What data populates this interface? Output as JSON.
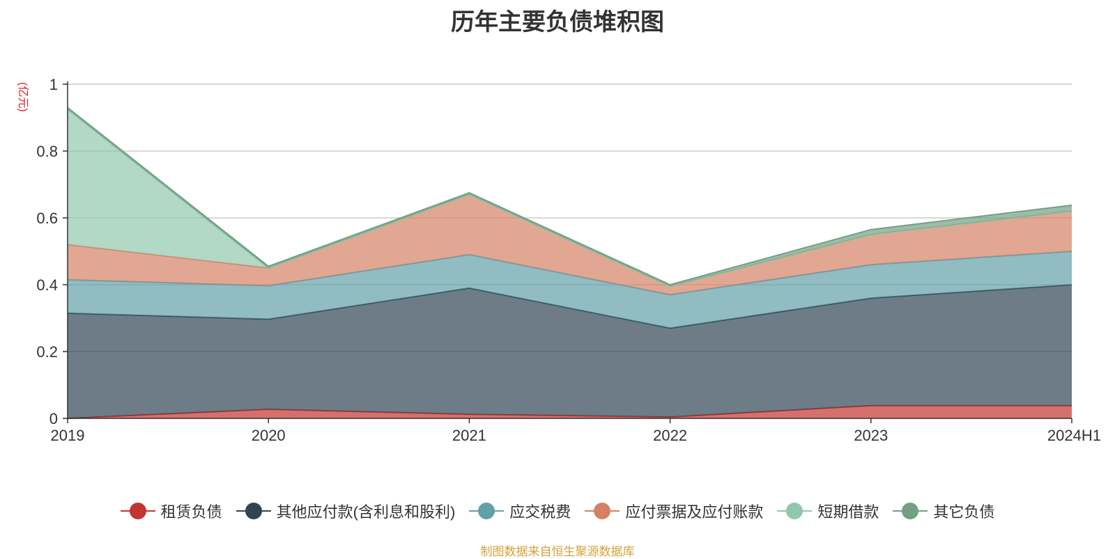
{
  "chart_data": {
    "type": "area",
    "stacked": true,
    "title": "历年主要负债堆积图",
    "ylabel": "(亿元)",
    "categories": [
      "2019",
      "2020",
      "2021",
      "2022",
      "2023",
      "2024H1"
    ],
    "ylim": [
      0,
      1
    ],
    "yticks": [
      "0",
      "0.2",
      "0.4",
      "0.6",
      "0.8",
      "1"
    ],
    "grid": true,
    "legend_position": "bottom",
    "series": [
      {
        "name": "租赁负债",
        "color": "#c23531",
        "values": [
          0.0,
          0.027,
          0.012,
          0.004,
          0.038,
          0.038
        ]
      },
      {
        "name": "其他应付款(含利息和股利)",
        "color": "#2f4554",
        "values": [
          0.315,
          0.27,
          0.378,
          0.266,
          0.322,
          0.362
        ]
      },
      {
        "name": "应交税费",
        "color": "#61a0a8",
        "values": [
          0.1,
          0.1,
          0.1,
          0.1,
          0.1,
          0.1
        ]
      },
      {
        "name": "应付票据及应付账款",
        "color": "#d48265",
        "values": [
          0.105,
          0.053,
          0.18,
          0.025,
          0.09,
          0.12
        ]
      },
      {
        "name": "短期借款",
        "color": "#91c7ae",
        "values": [
          0.405,
          0.0,
          0.0,
          0.0,
          0.0,
          0.0
        ]
      },
      {
        "name": "其它负债",
        "color": "#749f83",
        "values": [
          0.005,
          0.005,
          0.005,
          0.005,
          0.015,
          0.018
        ]
      }
    ]
  },
  "footer": {
    "source": "制图数据来自恒生聚源数据库"
  }
}
